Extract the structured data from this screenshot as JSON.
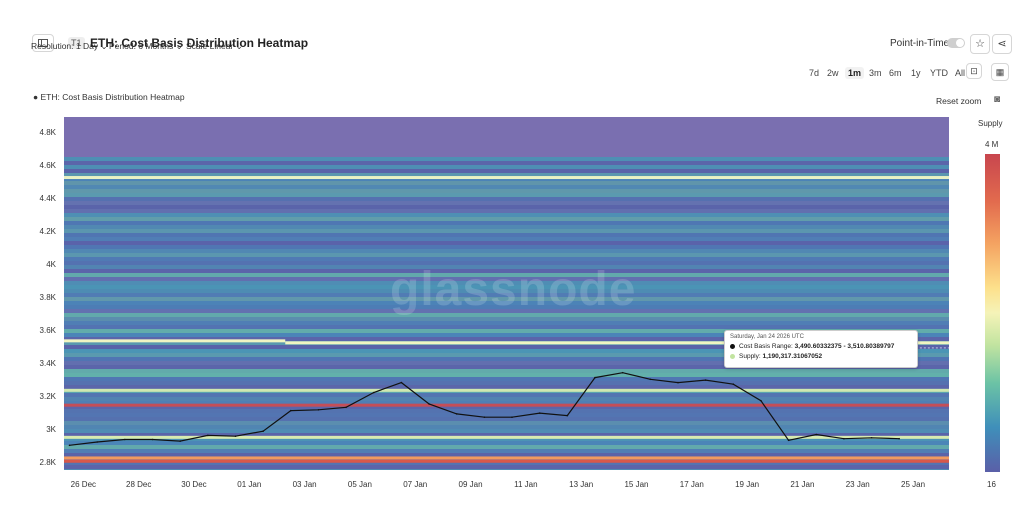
{
  "header": {
    "tier": "T1",
    "title": "ETH: Cost Basis Distribution Heatmap",
    "point_in_time_label": "Point-in-Time"
  },
  "controls": {
    "resolution": "Resolution: 1 Day",
    "period": "Period: 6 Months",
    "scale": "Scale Linear",
    "ranges": [
      "7d",
      "2w",
      "1m",
      "3m",
      "6m",
      "1y",
      "YTD",
      "All"
    ],
    "active_range": "1m",
    "reset_zoom": "Reset zoom"
  },
  "icons": {
    "sidebar": "sidebar-toggle-icon",
    "star": "star-icon",
    "share": "share-icon",
    "zoom": "zoom-select-icon",
    "calendar": "calendar-icon",
    "camera": "camera-icon"
  },
  "watermark": "glassnode",
  "chart_data": {
    "type": "heatmap",
    "legend_entry": "ETH: Cost Basis Distribution Heatmap",
    "color_scale": {
      "title": "Supply",
      "max_label": "4 M",
      "min_label": "16",
      "colors": [
        "#c8464e",
        "#f4a261",
        "#fde08b",
        "#c2e4a0",
        "#6cc3a5",
        "#3f8fba",
        "#5a5fa8"
      ]
    },
    "y_ticks": [
      "2.8K",
      "3K",
      "3.2K",
      "3.4K",
      "3.6K",
      "3.8K",
      "4K",
      "4.2K",
      "4.4K",
      "4.6K",
      "4.8K"
    ],
    "y_tick_values": [
      2800,
      3000,
      3200,
      3400,
      3600,
      3800,
      4000,
      4200,
      4400,
      4600,
      4800
    ],
    "ylim": [
      2760,
      4900
    ],
    "x_ticks": [
      "26 Dec",
      "28 Dec",
      "30 Dec",
      "01 Jan",
      "03 Jan",
      "05 Jan",
      "07 Jan",
      "09 Jan",
      "11 Jan",
      "13 Jan",
      "15 Jan",
      "17 Jan",
      "19 Jan",
      "21 Jan",
      "23 Jan",
      "25 Jan"
    ],
    "x_tick_day_index": [
      1,
      3,
      5,
      7,
      9,
      11,
      13,
      15,
      17,
      19,
      21,
      23,
      25,
      27,
      29,
      31
    ],
    "days_total": 32,
    "price_series": {
      "name": "ETH: Cost Basis Distribution Heatmap",
      "color": "#111111",
      "day_index": [
        0,
        1,
        2,
        3,
        4,
        5,
        6,
        7,
        8,
        9,
        10,
        11,
        12,
        13,
        14,
        15,
        16,
        17,
        18,
        19,
        20,
        21,
        22,
        23,
        24,
        25,
        26,
        27,
        28,
        29,
        30
      ],
      "values": [
        2910,
        2930,
        2945,
        2945,
        2935,
        2970,
        2965,
        2995,
        3120,
        3125,
        3140,
        3230,
        3290,
        3160,
        3100,
        3080,
        3080,
        3105,
        3090,
        3320,
        3350,
        3310,
        3290,
        3305,
        3280,
        3180,
        2940,
        2975,
        2950,
        2955,
        2950
      ]
    },
    "bands": [
      {
        "price": 2810,
        "color": "#d8584a"
      },
      {
        "price": 2830,
        "color": "#f19a5f"
      },
      {
        "price": 2955,
        "color": "#d7ebb0"
      },
      {
        "price": 3150,
        "color": "#c44e58"
      },
      {
        "price": 3240,
        "color": "#cfe8b0"
      },
      {
        "price": 3540,
        "color": "#f2f5c2"
      },
      {
        "price": 4530,
        "color": "#e9f2c4"
      }
    ],
    "tooltip": {
      "date": "Saturday, Jan 24 2026 UTC",
      "range_label": "Cost Basis Range:",
      "range_value": "3,490.60332375 - 3,510.80389797",
      "supply_label": "Supply:",
      "supply_value": "1,190,317.31067052"
    }
  }
}
